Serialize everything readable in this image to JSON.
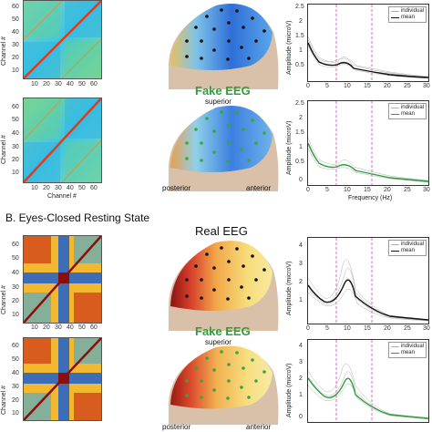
{
  "section_b": {
    "title": "B. Eyes-Closed Resting State"
  },
  "matrices": {
    "ylabel": "Channel #",
    "xlabel": "Channel #",
    "xticks": [
      "10",
      "20",
      "30",
      "40",
      "50",
      "60"
    ],
    "yticks": [
      "60",
      "50",
      "40",
      "30",
      "20",
      "10"
    ],
    "colors": {
      "a_base": "#3fc6e0",
      "a_diag": "#e23a1c",
      "b_high": "#c81e12",
      "b_mid": "#f6d23a",
      "b_low": "#1e5fd0"
    }
  },
  "heads": {
    "real_title": "Real EEG",
    "fake_title": "Fake EEG",
    "superior": "superior",
    "posterior": "posterior",
    "anterior": "anterior",
    "colors": {
      "real_dots": "#111111",
      "fake_dots": "#3aa63a",
      "skin": "#d9c0a8"
    }
  },
  "spectra": {
    "ylabel": "Amplitude (microV)",
    "xlabel": "Frequency (Hz)",
    "legend_individual": "individual",
    "legend_mean": "mean",
    "xticks": [
      "0",
      "5",
      "10",
      "15",
      "20",
      "25",
      "30"
    ],
    "colors": {
      "real_mean": "#111111",
      "fake_mean": "#2e9e3a",
      "individual": "#b0b0b0",
      "marker_line": "#e040c0"
    },
    "panels": [
      {
        "yticks": [
          "2.5",
          "2",
          "1.5",
          "1",
          "0.5"
        ]
      },
      {
        "yticks": [
          "2.5",
          "2",
          "1.5",
          "1",
          "0.5",
          "0"
        ]
      },
      {
        "yticks": [
          "4",
          "3",
          "2",
          "1"
        ]
      },
      {
        "yticks": [
          "4",
          "3",
          "2",
          "1",
          "0"
        ]
      }
    ]
  }
}
